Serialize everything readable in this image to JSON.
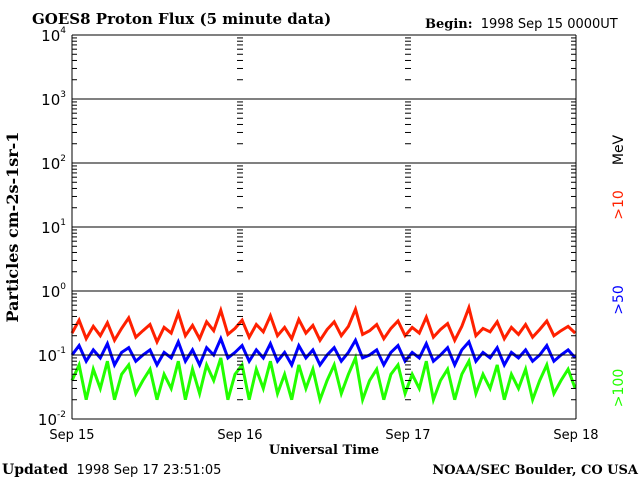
{
  "chart_data": {
    "type": "line",
    "title": "GOES8 Proton Flux (5 minute data)",
    "begin_label": "Begin:",
    "begin_value": "1998 Sep 15 0000UT",
    "xlabel": "Universal Time",
    "ylabel": "Particles cm-2s-1sr-1",
    "y_scale": "log",
    "ylim": [
      0.01,
      10000
    ],
    "y_ticks": [
      {
        "base": "10",
        "exp": "-2",
        "value": 0.01
      },
      {
        "base": "10",
        "exp": "-1",
        "value": 0.1
      },
      {
        "base": "10",
        "exp": "0",
        "value": 1
      },
      {
        "base": "10",
        "exp": "1",
        "value": 10
      },
      {
        "base": "10",
        "exp": "2",
        "value": 100
      },
      {
        "base": "10",
        "exp": "3",
        "value": 1000
      },
      {
        "base": "10",
        "exp": "4",
        "value": 10000
      }
    ],
    "xlim_days": [
      0,
      3
    ],
    "x_ticks": [
      {
        "label": "Sep 15",
        "day": 0
      },
      {
        "label": "Sep 16",
        "day": 1
      },
      {
        "label": "Sep 17",
        "day": 2
      },
      {
        "label": "Sep 18",
        "day": 3
      }
    ],
    "units_label": "MeV",
    "grid": true,
    "series": [
      {
        "name": ">10",
        "color": "#ff2000",
        "values": [
          0.22,
          0.35,
          0.18,
          0.28,
          0.2,
          0.32,
          0.17,
          0.26,
          0.38,
          0.19,
          0.24,
          0.3,
          0.16,
          0.27,
          0.22,
          0.45,
          0.2,
          0.29,
          0.18,
          0.33,
          0.24,
          0.5,
          0.21,
          0.26,
          0.35,
          0.19,
          0.3,
          0.23,
          0.41,
          0.2,
          0.27,
          0.18,
          0.36,
          0.22,
          0.29,
          0.17,
          0.25,
          0.33,
          0.2,
          0.28,
          0.52,
          0.21,
          0.24,
          0.3,
          0.18,
          0.26,
          0.34,
          0.2,
          0.27,
          0.22,
          0.39,
          0.19,
          0.25,
          0.31,
          0.17,
          0.28,
          0.55,
          0.2,
          0.26,
          0.23,
          0.33,
          0.18,
          0.27,
          0.21,
          0.3,
          0.19,
          0.25,
          0.34,
          0.2,
          0.24,
          0.28,
          0.22
        ]
      },
      {
        "name": ">50",
        "color": "#0000ff",
        "values": [
          0.1,
          0.14,
          0.08,
          0.12,
          0.09,
          0.15,
          0.07,
          0.11,
          0.13,
          0.08,
          0.1,
          0.12,
          0.07,
          0.11,
          0.09,
          0.16,
          0.08,
          0.12,
          0.07,
          0.13,
          0.1,
          0.18,
          0.09,
          0.11,
          0.14,
          0.08,
          0.12,
          0.09,
          0.15,
          0.08,
          0.11,
          0.07,
          0.14,
          0.09,
          0.12,
          0.07,
          0.1,
          0.13,
          0.08,
          0.11,
          0.17,
          0.09,
          0.1,
          0.12,
          0.07,
          0.11,
          0.14,
          0.08,
          0.11,
          0.09,
          0.15,
          0.08,
          0.1,
          0.13,
          0.07,
          0.12,
          0.16,
          0.08,
          0.11,
          0.09,
          0.13,
          0.07,
          0.11,
          0.09,
          0.12,
          0.08,
          0.1,
          0.14,
          0.08,
          0.1,
          0.12,
          0.09
        ]
      },
      {
        "name": ">100",
        "color": "#22ff00",
        "values": [
          0.04,
          0.07,
          0.02,
          0.06,
          0.03,
          0.08,
          0.02,
          0.05,
          0.07,
          0.025,
          0.04,
          0.06,
          0.02,
          0.05,
          0.03,
          0.08,
          0.02,
          0.06,
          0.025,
          0.07,
          0.04,
          0.09,
          0.02,
          0.05,
          0.07,
          0.02,
          0.06,
          0.03,
          0.08,
          0.025,
          0.05,
          0.02,
          0.07,
          0.03,
          0.06,
          0.02,
          0.04,
          0.07,
          0.025,
          0.05,
          0.09,
          0.02,
          0.04,
          0.06,
          0.02,
          0.05,
          0.07,
          0.025,
          0.05,
          0.03,
          0.08,
          0.02,
          0.04,
          0.06,
          0.02,
          0.05,
          0.08,
          0.025,
          0.05,
          0.03,
          0.07,
          0.02,
          0.05,
          0.03,
          0.06,
          0.02,
          0.04,
          0.07,
          0.025,
          0.04,
          0.06,
          0.03
        ]
      }
    ]
  },
  "footer": {
    "updated_label": "Updated",
    "updated_value": "1998 Sep 17 23:51:05",
    "credit": "NOAA/SEC Boulder, CO USA"
  }
}
